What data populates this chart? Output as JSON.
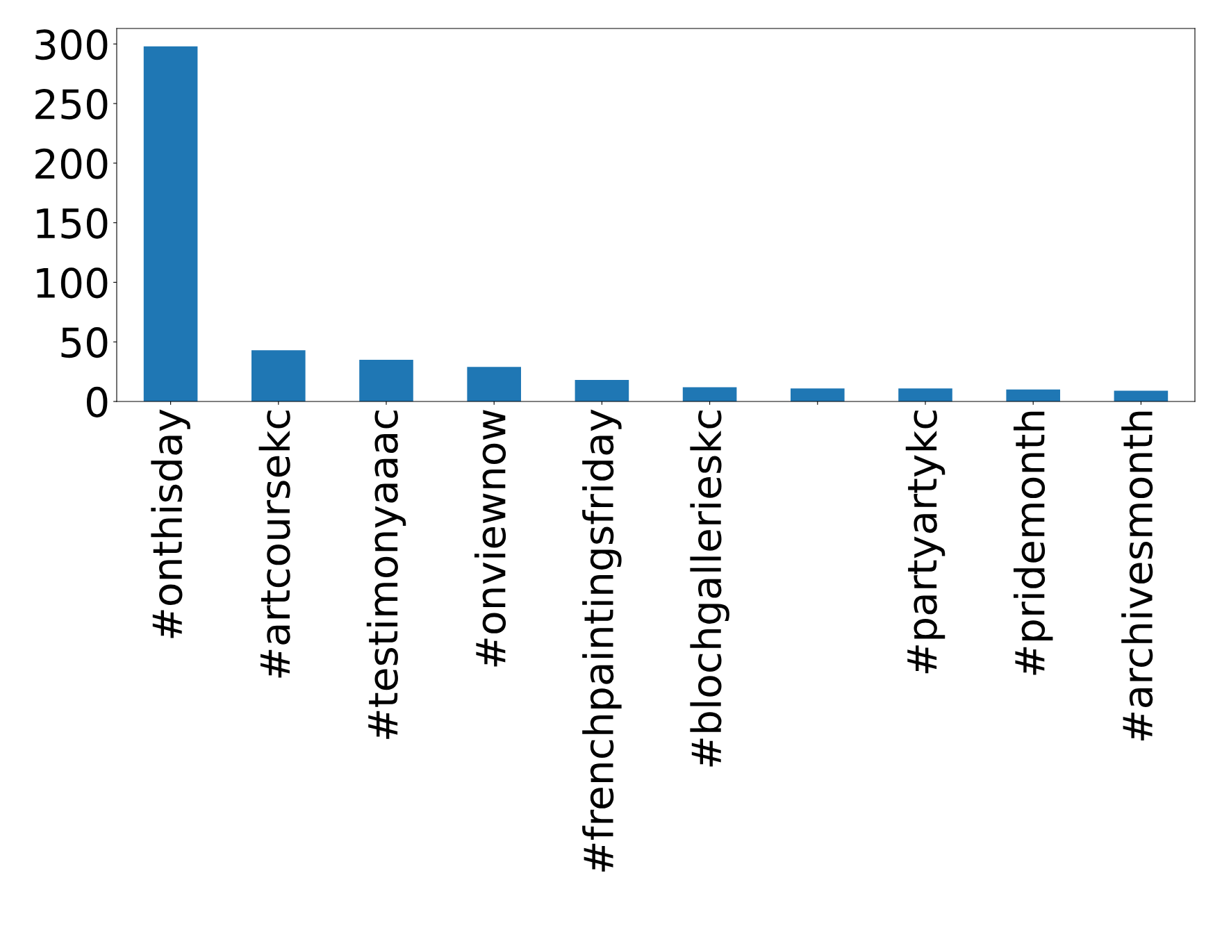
{
  "chart_data": {
    "type": "bar",
    "categories": [
      "#onthisday",
      "#artcoursekc",
      "#testimonyaaac",
      "#onviewnow",
      "#frenchpaintingsfriday",
      "#blochgallerieskc",
      null,
      "#partyartykc",
      "#pridemonth",
      "#archivesmonth"
    ],
    "values": [
      298,
      43,
      35,
      29,
      18,
      12,
      11,
      11,
      10,
      9
    ],
    "color": "#1f77b4",
    "ylim": [
      0,
      313
    ],
    "yticks": [
      0,
      50,
      100,
      150,
      200,
      250,
      300
    ],
    "grid": false
  }
}
